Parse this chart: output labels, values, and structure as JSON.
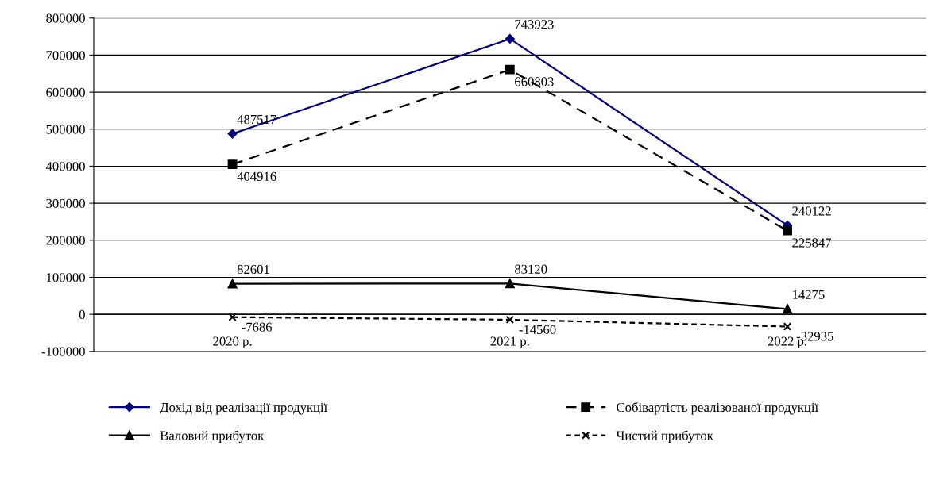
{
  "chart_data": {
    "type": "line",
    "categories": [
      "2020 р.",
      "2021 р.",
      "2022 р."
    ],
    "series": [
      {
        "name": "Дохід від реалізації продукції",
        "color": "#000080",
        "marker": "diamond",
        "line_style": "solid",
        "values": [
          487517,
          743923,
          240122
        ]
      },
      {
        "name": "Собівартість реалізованої продукції",
        "color": "#000000",
        "marker": "square",
        "line_style": "dashed",
        "values": [
          404916,
          660803,
          225847
        ]
      },
      {
        "name": "Валовий прибуток",
        "color": "#000000",
        "marker": "triangle",
        "line_style": "solid",
        "values": [
          82601,
          83120,
          14275
        ]
      },
      {
        "name": "Чистий прибуток",
        "color": "#000000",
        "marker": "cross",
        "line_style": "dotted",
        "values": [
          -7686,
          -14560,
          -32935
        ]
      }
    ],
    "ylim": [
      -100000,
      800000
    ],
    "yticks": [
      -100000,
      0,
      100000,
      200000,
      300000,
      400000,
      500000,
      600000,
      700000,
      800000
    ],
    "grid": "y",
    "legend": "bottom",
    "data_labels": true
  }
}
